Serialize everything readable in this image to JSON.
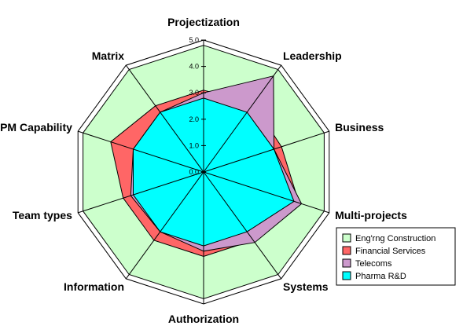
{
  "chart_data": {
    "type": "radar",
    "categories": [
      "Projectization",
      "Leadership",
      "Business",
      "Multi-projects",
      "Systems",
      "Authorization",
      "Information",
      "Team types",
      "PM Capability",
      "Matrix"
    ],
    "ticks": [
      "0.0",
      "1.0",
      "2.0",
      "3.0",
      "4.0",
      "5.0"
    ],
    "rlim": [
      0,
      5
    ],
    "legend_position": "bottom-right",
    "series": [
      {
        "name": "Eng'rng Construction",
        "color": "#ccffcc",
        "values": [
          4.8,
          4.8,
          4.8,
          4.8,
          4.8,
          4.8,
          4.8,
          4.8,
          4.8,
          4.8
        ]
      },
      {
        "name": "Financial Services",
        "color": "#ff6666",
        "values": [
          3.1,
          3.2,
          3.1,
          3.8,
          3.2,
          3.2,
          3.2,
          3.2,
          3.7,
          3.1
        ]
      },
      {
        "name": "Telecoms",
        "color": "#cc99cc",
        "values": [
          3.0,
          4.5,
          2.8,
          3.9,
          3.3,
          3.0,
          2.8,
          2.9,
          2.8,
          2.8
        ]
      },
      {
        "name": "Pharma R&D",
        "color": "#00ffff",
        "values": [
          2.8,
          2.8,
          2.8,
          3.6,
          2.8,
          2.8,
          2.8,
          2.8,
          2.8,
          2.8
        ]
      }
    ]
  }
}
